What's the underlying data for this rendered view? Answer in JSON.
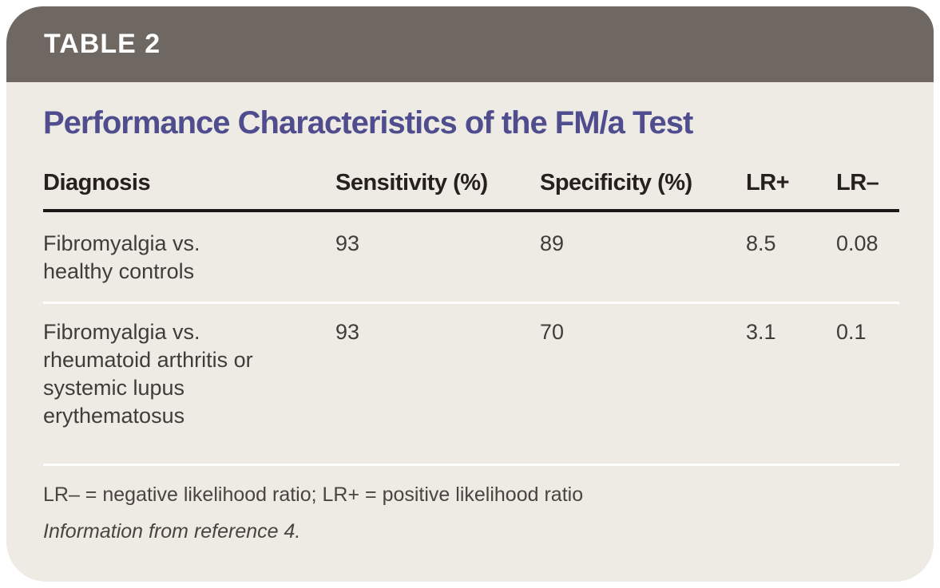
{
  "header": {
    "label": "TABLE 2"
  },
  "title": "Performance Characteristics of the FM/a Test",
  "table": {
    "columns": {
      "diagnosis": "Diagnosis",
      "sensitivity": "Sensitivity (%)",
      "specificity": "Specificity (%)",
      "lr_plus": "LR+",
      "lr_minus": "LR–"
    },
    "rows": [
      {
        "diagnosis": "Fibromyalgia vs. healthy controls",
        "sensitivity": "93",
        "specificity": "89",
        "lr_plus": "8.5",
        "lr_minus": "0.08"
      },
      {
        "diagnosis": "Fibromyalgia vs. rheumatoid arthritis or systemic lupus erythematosus",
        "sensitivity": "93",
        "specificity": "70",
        "lr_plus": "3.1",
        "lr_minus": "0.1"
      }
    ]
  },
  "footnotes": {
    "abbreviations": "LR– = negative likelihood ratio; LR+ = positive likelihood ratio",
    "source": "Information from reference 4."
  },
  "colors": {
    "header_bar": "#6e6762",
    "card_background": "#edebe4",
    "title_text": "#504d8e",
    "heading_text": "#26211f",
    "body_text": "#403c39",
    "header_rule": "#1c1a18",
    "row_separator": "#ffffff"
  }
}
